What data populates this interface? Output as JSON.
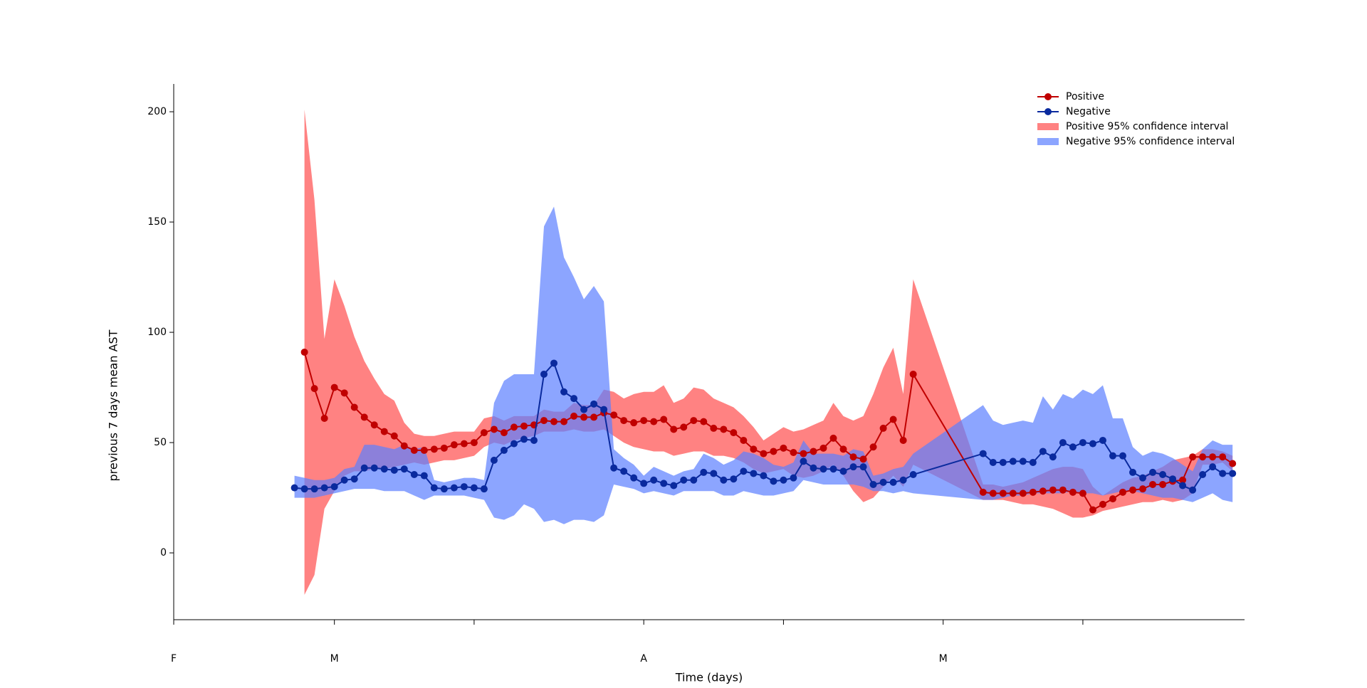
{
  "chart_data": {
    "type": "line",
    "y_label": "previous 7 days mean AST",
    "x_label": "Time (days)",
    "xlim": [
      -16.1,
      91.2
    ],
    "xticks": [
      {
        "value": -16.1,
        "label": "F"
      },
      {
        "value": 0,
        "label": "M"
      },
      {
        "value": 31,
        "label": "A"
      },
      {
        "value": 61,
        "label": "M"
      }
    ],
    "xminorticks": [
      14,
      45,
      75
    ],
    "ylim": [
      -30.3,
      212.6
    ],
    "yticks": [
      0,
      50,
      100,
      150,
      200
    ],
    "legend": "upper right",
    "x": [
      -4,
      -3,
      -2,
      -1,
      0,
      1,
      2,
      3,
      4,
      5,
      6,
      7,
      8,
      9,
      10,
      11,
      12,
      13,
      14,
      15,
      16,
      17,
      18,
      19,
      20,
      21,
      22,
      23,
      24,
      25,
      26,
      27,
      28,
      29,
      30,
      31,
      32,
      33,
      34,
      35,
      36,
      37,
      38,
      39,
      40,
      41,
      42,
      43,
      44,
      45,
      46,
      47,
      48,
      49,
      50,
      51,
      52,
      53,
      54,
      55,
      56,
      57,
      58,
      65,
      66,
      67,
      68,
      69,
      70,
      71,
      72,
      73,
      74,
      75,
      76,
      77,
      78,
      79,
      80,
      81,
      82,
      83,
      84,
      85,
      86,
      87,
      88,
      89,
      90
    ],
    "series": [
      {
        "name": "Positive",
        "ci_name": "Positive 95% confidence interval",
        "color": "#c00000",
        "ci_color": "#ff4d4d",
        "values": [
          null,
          91,
          74.5,
          61,
          75,
          72.5,
          66,
          61.5,
          58,
          55,
          53,
          48.5,
          46.5,
          46.5,
          47,
          47.5,
          49,
          49.5,
          50,
          54.5,
          56,
          54.5,
          57,
          57.5,
          58,
          60,
          59.5,
          59.5,
          62,
          61.5,
          61.5,
          63.5,
          62.5,
          60,
          59,
          60,
          59.5,
          60.5,
          56,
          57,
          60,
          59.5,
          56.5,
          56,
          54.5,
          51,
          47,
          45,
          46,
          47.5,
          45.5,
          45,
          46,
          47.5,
          52,
          47,
          43.5,
          42.5,
          48,
          56.5,
          60.5,
          51,
          81,
          27.5,
          27,
          27,
          27,
          27,
          27.5,
          28,
          28.5,
          28.5,
          27.5,
          27,
          19.5,
          22,
          24.5,
          27.5,
          28.5,
          29,
          31,
          31,
          32.5,
          33,
          43.5,
          43.5,
          43.5,
          43.5,
          40.5
        ],
        "lower": [
          null,
          -19,
          -10,
          20,
          28,
          35,
          37,
          37,
          38,
          38,
          39,
          40,
          41,
          40,
          41,
          42,
          42,
          43,
          44,
          48,
          50,
          49,
          51,
          52,
          53,
          55,
          55,
          55,
          56,
          55,
          55,
          56,
          53,
          50,
          48,
          47,
          46,
          46,
          44,
          45,
          46,
          46,
          44,
          44,
          43,
          41,
          38,
          36,
          37,
          38,
          35,
          34,
          35,
          37,
          40,
          35,
          28,
          23,
          25,
          30,
          35,
          30,
          40,
          24,
          24,
          24,
          23,
          22,
          22,
          21,
          20,
          18,
          16,
          16,
          17,
          19,
          20,
          21,
          22,
          23,
          23,
          24,
          23,
          24,
          27,
          40,
          40,
          41,
          37
        ],
        "upper": [
          null,
          201,
          160,
          97,
          124,
          112,
          98,
          87,
          79,
          72,
          69,
          59,
          54,
          53,
          53,
          54,
          55,
          55,
          55,
          61,
          62,
          60,
          62,
          62,
          62,
          65,
          64,
          64,
          68,
          67,
          67,
          74,
          73,
          70,
          72,
          73,
          73,
          76,
          68,
          70,
          75,
          74,
          70,
          68,
          66,
          62,
          57,
          51,
          54,
          57,
          55,
          56,
          58,
          60,
          68,
          62,
          60,
          62,
          72,
          84,
          93,
          72,
          124,
          31,
          31,
          30,
          31,
          32,
          34,
          36,
          38,
          39,
          39,
          38,
          30,
          26,
          29,
          32,
          34,
          35,
          37,
          39,
          42,
          43,
          44,
          47,
          47,
          46,
          44
        ]
      },
      {
        "name": "Negative",
        "ci_name": "Negative 95% confidence interval",
        "color": "#0a2a9e",
        "ci_color": "#5b7fff",
        "values": [
          29.5,
          29,
          29,
          29.5,
          30,
          33,
          33.5,
          38.5,
          38.5,
          38,
          37.5,
          38,
          35.5,
          35,
          29.5,
          29,
          29.5,
          30,
          29.5,
          29,
          42,
          46.5,
          49.5,
          51.5,
          51,
          81,
          86,
          73,
          70,
          65,
          67.5,
          65,
          38.5,
          37,
          34,
          31.5,
          33,
          31.5,
          30.5,
          33,
          33,
          36.5,
          36,
          33,
          33.5,
          37,
          36,
          35,
          32.5,
          33,
          34,
          41.5,
          38.5,
          38,
          38,
          37,
          39,
          39,
          31,
          32,
          32,
          33,
          35.5,
          45,
          41,
          41,
          41.5,
          41.5,
          41,
          46,
          43.5,
          50,
          48,
          50,
          49.5,
          51,
          44,
          44,
          36.5,
          34,
          36.5,
          35.5,
          33.5,
          30.5,
          28.5,
          35.5,
          39,
          36,
          36
        ],
        "lower": [
          25,
          25,
          25,
          26,
          27,
          28,
          29,
          29,
          29,
          28,
          28,
          28,
          26,
          24,
          26,
          26,
          26,
          26,
          25,
          24,
          16,
          15,
          17,
          22,
          20,
          14,
          15,
          13,
          15,
          15,
          14,
          17,
          31,
          30,
          29,
          27,
          28,
          27,
          26,
          28,
          28,
          28,
          28,
          26,
          26,
          28,
          27,
          26,
          26,
          27,
          28,
          33,
          32,
          31,
          31,
          31,
          31,
          30,
          28,
          28,
          27,
          28,
          27,
          24,
          24,
          25,
          26,
          26,
          27,
          27,
          27,
          27,
          28,
          27,
          27,
          26,
          27,
          28,
          28,
          27,
          26,
          25,
          25,
          24,
          23,
          25,
          27,
          24,
          23
        ],
        "upper": [
          35,
          34,
          33,
          33,
          34,
          38,
          39,
          49,
          49,
          48,
          47,
          49,
          47,
          48,
          33,
          32,
          33,
          34,
          34,
          33,
          68,
          78,
          81,
          81,
          81,
          148,
          157,
          134,
          125,
          115,
          121,
          114,
          47,
          43,
          40,
          35,
          39,
          37,
          35,
          37,
          38,
          45,
          43,
          40,
          42,
          46,
          45,
          43,
          40,
          39,
          41,
          51,
          45,
          45,
          45,
          44,
          47,
          46,
          35,
          36,
          38,
          39,
          45,
          67,
          60,
          58,
          59,
          60,
          59,
          71,
          65,
          72,
          70,
          74,
          72,
          76,
          61,
          61,
          48,
          44,
          46,
          45,
          43,
          40,
          37,
          47,
          51,
          49,
          49
        ]
      }
    ]
  }
}
